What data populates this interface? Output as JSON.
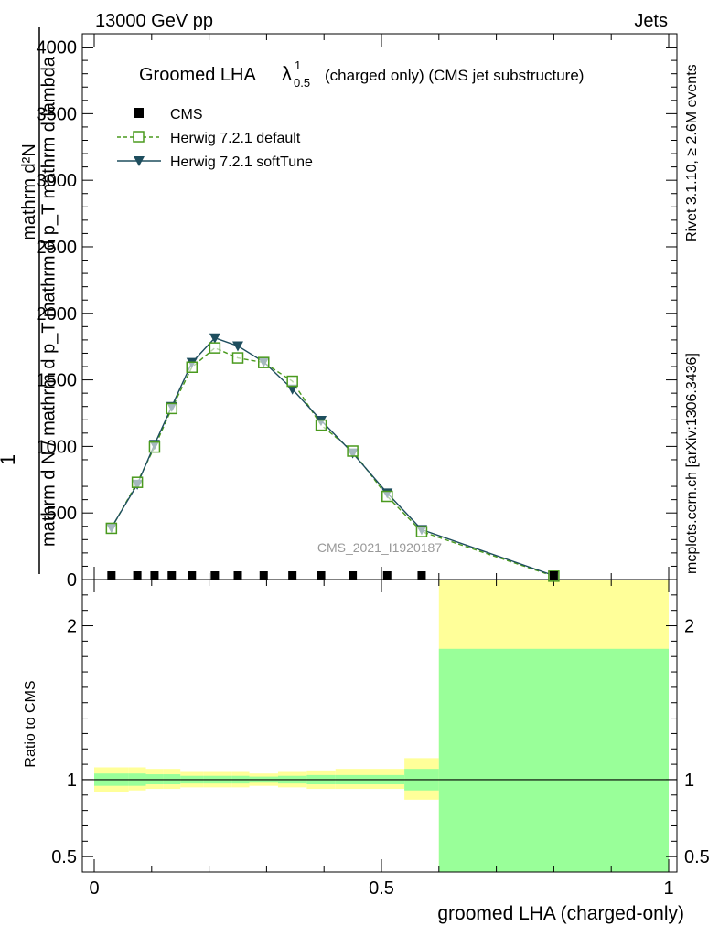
{
  "header": {
    "left": "13000 GeV pp",
    "right": "Jets"
  },
  "side_labels": {
    "rivet": "Rivet 3.1.10, ≥ 2.6M events",
    "mcplots": "mcplots.cern.ch [arXiv:1306.3436]"
  },
  "watermark": "CMS_2021_I1920187",
  "chart_data": {
    "type": "line",
    "title": {
      "prefix": "Groomed LHA",
      "symbol": "λ",
      "superscript": "1",
      "subscript": "0.5",
      "suffix": "(charged only) (CMS jet substructure)"
    },
    "xlabel": "groomed LHA (charged-only)",
    "ylabel": {
      "fraction_prefix": "1",
      "numerator": "mathrm d²N",
      "denominator": "mathrm d N / mathrm d p_T mathrm d p_T mathrm d lambda"
    },
    "ratio_ylabel": "Ratio to CMS",
    "xlim": [
      0,
      1
    ],
    "ylim": [
      0,
      4100
    ],
    "ratio_ylim": [
      0.4,
      2.3
    ],
    "x_ticks": [
      {
        "value": 0,
        "label": "0"
      },
      {
        "value": 0.5,
        "label": "0.5"
      },
      {
        "value": 1,
        "label": "1"
      }
    ],
    "y_ticks": [
      {
        "value": 0,
        "label": "0"
      },
      {
        "value": 500,
        "label": "500"
      },
      {
        "value": 1000,
        "label": "1000"
      },
      {
        "value": 1500,
        "label": "1500"
      },
      {
        "value": 2000,
        "label": "2000"
      },
      {
        "value": 2500,
        "label": "2500"
      },
      {
        "value": 3000,
        "label": "3000"
      },
      {
        "value": 3500,
        "label": "3500"
      },
      {
        "value": 4000,
        "label": "4000"
      }
    ],
    "ratio_ticks": [
      {
        "value": 0.5,
        "label": "0.5"
      },
      {
        "value": 1,
        "label": "1"
      },
      {
        "value": 2,
        "label": "2"
      }
    ],
    "bin_edges": [
      0,
      0.06,
      0.09,
      0.12,
      0.15,
      0.19,
      0.24,
      0.27,
      0.32,
      0.37,
      0.42,
      0.48,
      0.54,
      0.6,
      1.0
    ],
    "x": [
      0.03,
      0.075,
      0.105,
      0.135,
      0.17,
      0.21,
      0.25,
      0.295,
      0.345,
      0.395,
      0.45,
      0.51,
      0.57,
      0.8
    ],
    "legend": [
      {
        "name": "CMS",
        "marker": "square-filled",
        "color": "#000000"
      },
      {
        "name": "Herwig 7.2.1 default",
        "marker": "square-open",
        "color": "#4a9a1e",
        "dash": true
      },
      {
        "name": "Herwig 7.2.1 softTune",
        "marker": "triangle-down",
        "color": "#1e4e5e",
        "dash": false
      }
    ],
    "series": [
      {
        "name": "CMS",
        "values": [
          10,
          10,
          10,
          10,
          10,
          10,
          10,
          10,
          10,
          10,
          10,
          10,
          10,
          10
        ]
      },
      {
        "name": "Herwig 7.2.1 default",
        "values": [
          385,
          730,
          995,
          1285,
          1595,
          1740,
          1665,
          1630,
          1490,
          1160,
          965,
          625,
          360,
          25
        ]
      },
      {
        "name": "Herwig 7.2.1 softTune",
        "values": [
          390,
          715,
          1015,
          1300,
          1630,
          1815,
          1755,
          1635,
          1430,
          1195,
          950,
          650,
          375,
          30
        ]
      }
    ],
    "ratio_band_yellow": [
      {
        "x0": 0,
        "x1": 0.06,
        "lo": 0.92,
        "hi": 1.08
      },
      {
        "x0": 0.06,
        "x1": 0.09,
        "lo": 0.93,
        "hi": 1.08
      },
      {
        "x0": 0.09,
        "x1": 0.12,
        "lo": 0.94,
        "hi": 1.07
      },
      {
        "x0": 0.12,
        "x1": 0.15,
        "lo": 0.94,
        "hi": 1.07
      },
      {
        "x0": 0.15,
        "x1": 0.19,
        "lo": 0.95,
        "hi": 1.05
      },
      {
        "x0": 0.19,
        "x1": 0.24,
        "lo": 0.95,
        "hi": 1.05
      },
      {
        "x0": 0.24,
        "x1": 0.27,
        "lo": 0.95,
        "hi": 1.05
      },
      {
        "x0": 0.27,
        "x1": 0.32,
        "lo": 0.96,
        "hi": 1.04
      },
      {
        "x0": 0.32,
        "x1": 0.37,
        "lo": 0.95,
        "hi": 1.05
      },
      {
        "x0": 0.37,
        "x1": 0.42,
        "lo": 0.94,
        "hi": 1.06
      },
      {
        "x0": 0.42,
        "x1": 0.48,
        "lo": 0.94,
        "hi": 1.07
      },
      {
        "x0": 0.48,
        "x1": 0.54,
        "lo": 0.94,
        "hi": 1.07
      },
      {
        "x0": 0.54,
        "x1": 0.6,
        "lo": 0.87,
        "hi": 1.14
      },
      {
        "x0": 0.6,
        "x1": 1.0,
        "lo": 0.4,
        "hi": 2.3
      }
    ],
    "ratio_band_green": [
      {
        "x0": 0,
        "x1": 0.06,
        "lo": 0.96,
        "hi": 1.04
      },
      {
        "x0": 0.06,
        "x1": 0.09,
        "lo": 0.96,
        "hi": 1.04
      },
      {
        "x0": 0.09,
        "x1": 0.12,
        "lo": 0.97,
        "hi": 1.035
      },
      {
        "x0": 0.12,
        "x1": 0.15,
        "lo": 0.97,
        "hi": 1.035
      },
      {
        "x0": 0.15,
        "x1": 0.19,
        "lo": 0.975,
        "hi": 1.025
      },
      {
        "x0": 0.19,
        "x1": 0.24,
        "lo": 0.975,
        "hi": 1.025
      },
      {
        "x0": 0.24,
        "x1": 0.27,
        "lo": 0.975,
        "hi": 1.025
      },
      {
        "x0": 0.27,
        "x1": 0.32,
        "lo": 0.98,
        "hi": 1.02
      },
      {
        "x0": 0.32,
        "x1": 0.37,
        "lo": 0.975,
        "hi": 1.025
      },
      {
        "x0": 0.37,
        "x1": 0.42,
        "lo": 0.97,
        "hi": 1.03
      },
      {
        "x0": 0.42,
        "x1": 0.48,
        "lo": 0.97,
        "hi": 1.03
      },
      {
        "x0": 0.48,
        "x1": 0.54,
        "lo": 0.97,
        "hi": 1.03
      },
      {
        "x0": 0.54,
        "x1": 0.6,
        "lo": 0.93,
        "hi": 1.07
      },
      {
        "x0": 0.6,
        "x1": 1.0,
        "lo": 0.4,
        "hi": 1.85
      }
    ],
    "colors": {
      "band_yellow": "#ffff99",
      "band_green": "#99ff99",
      "default_line": "#4a9a1e",
      "softtune_line": "#1e4e5e",
      "data": "#000000",
      "watermark": "#999999",
      "side_text": "#888888"
    }
  }
}
